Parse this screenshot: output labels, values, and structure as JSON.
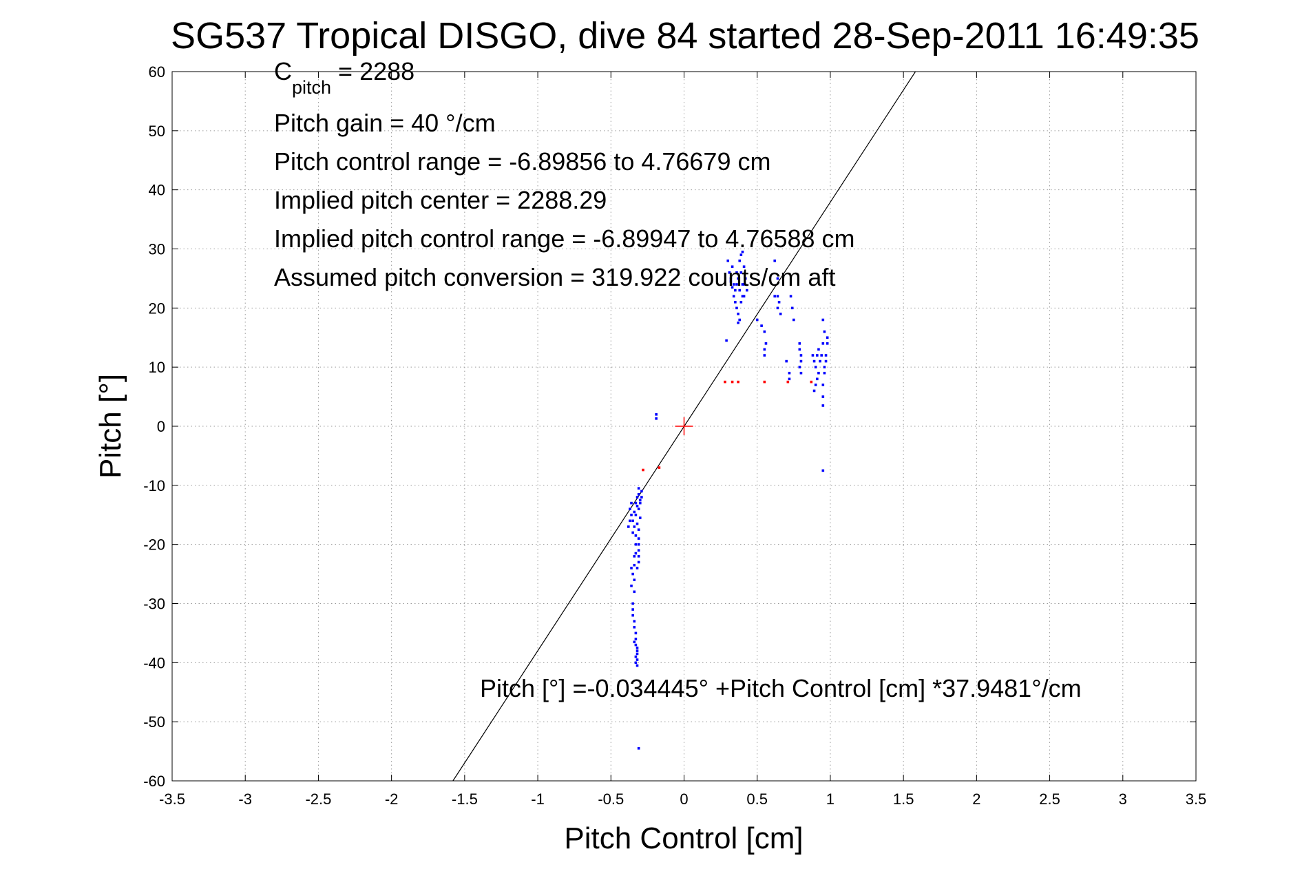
{
  "chart_data": {
    "type": "scatter",
    "title": "SG537 Tropical DISGO, dive 84 started 28-Sep-2011 16:49:35",
    "xlabel": "Pitch Control [cm]",
    "ylabel": "Pitch [°]",
    "xlim": [
      -3.5,
      3.5
    ],
    "ylim": [
      -60,
      60
    ],
    "xticks": [
      -3.5,
      -3,
      -2.5,
      -2,
      -1.5,
      -1,
      -0.5,
      0,
      0.5,
      1,
      1.5,
      2,
      2.5,
      3,
      3.5
    ],
    "xtick_labels": [
      "-3.5",
      "-3",
      "-2.5",
      "-2",
      "-1.5",
      "-1",
      "-0.5",
      "0",
      "0.5",
      "1",
      "1.5",
      "2",
      "2.5",
      "3",
      "3.5"
    ],
    "yticks": [
      -60,
      -50,
      -40,
      -30,
      -20,
      -10,
      0,
      10,
      20,
      30,
      40,
      50,
      60
    ],
    "ytick_labels": [
      "-60",
      "-50",
      "-40",
      "-30",
      "-20",
      "-10",
      "0",
      "10",
      "20",
      "30",
      "40",
      "50",
      "60"
    ],
    "grid": true,
    "annotations": {
      "c_pitch_main": "C",
      "c_pitch_sub": "pitch",
      "c_pitch_value": " = 2288",
      "pitch_gain": "Pitch gain = 40 °/cm",
      "control_range": "Pitch control range = -6.89856 to 4.76679 cm",
      "implied_center": "Implied pitch center = 2288.29",
      "implied_range": "Implied pitch control range = -6.89947 to 4.76588 cm",
      "assumed_conversion": "Assumed pitch conversion = 319.922 counts/cm aft",
      "fit_equation": "Pitch [°] =-0.034445° +Pitch Control [cm] *37.9481°/cm"
    },
    "fit_line": {
      "intercept": -0.034445,
      "slope": 37.9481,
      "color": "#000000"
    },
    "center_marker": {
      "x": 0,
      "y": 0,
      "color": "#ff0000",
      "shape": "plus"
    },
    "series": [
      {
        "color": "#0000ff",
        "points": [
          [
            -0.31,
            -10.5
          ],
          [
            -0.31,
            -11.5
          ],
          [
            -0.32,
            -12
          ],
          [
            -0.3,
            -12.5
          ],
          [
            -0.33,
            -13
          ],
          [
            -0.32,
            -13.5
          ],
          [
            -0.31,
            -14
          ],
          [
            -0.34,
            -14.5
          ],
          [
            -0.33,
            -15
          ],
          [
            -0.3,
            -15.5
          ],
          [
            -0.35,
            -16
          ],
          [
            -0.32,
            -16.5
          ],
          [
            -0.34,
            -17
          ],
          [
            -0.31,
            -17.5
          ],
          [
            -0.35,
            -18
          ],
          [
            -0.33,
            -18.5
          ],
          [
            -0.36,
            -13
          ],
          [
            -0.37,
            -14
          ],
          [
            -0.36,
            -15
          ],
          [
            -0.37,
            -16
          ],
          [
            -0.38,
            -17
          ],
          [
            -0.29,
            -11
          ],
          [
            -0.29,
            -12
          ],
          [
            -0.3,
            -13
          ],
          [
            -0.31,
            -19
          ],
          [
            -0.31,
            -20
          ],
          [
            -0.31,
            -21
          ],
          [
            -0.31,
            -22
          ],
          [
            -0.31,
            -23
          ],
          [
            -0.32,
            -24
          ],
          [
            -0.33,
            -20
          ],
          [
            -0.33,
            -21.5
          ],
          [
            -0.34,
            -22
          ],
          [
            -0.34,
            -23.5
          ],
          [
            -0.35,
            -25
          ],
          [
            -0.34,
            -26
          ],
          [
            -0.34,
            -28
          ],
          [
            -0.35,
            -30
          ],
          [
            -0.35,
            -32
          ],
          [
            -0.34,
            -33
          ],
          [
            -0.34,
            -34
          ],
          [
            -0.33,
            -35
          ],
          [
            -0.33,
            -36
          ],
          [
            -0.33,
            -37
          ],
          [
            -0.32,
            -38
          ],
          [
            -0.32,
            -38.5
          ],
          [
            -0.33,
            -39
          ],
          [
            -0.32,
            -39.5
          ],
          [
            -0.33,
            -40
          ],
          [
            -0.32,
            -40.5
          ],
          [
            -0.34,
            -36.5
          ],
          [
            -0.32,
            -37.5
          ],
          [
            -0.35,
            -31
          ],
          [
            -0.36,
            -27
          ],
          [
            -0.36,
            -24
          ],
          [
            -0.31,
            -54.5
          ],
          [
            -0.19,
            2
          ],
          [
            -0.19,
            1.3
          ],
          [
            0.3,
            28
          ],
          [
            0.31,
            26
          ],
          [
            0.32,
            25
          ],
          [
            0.33,
            27
          ],
          [
            0.34,
            24
          ],
          [
            0.35,
            23
          ],
          [
            0.36,
            26
          ],
          [
            0.37,
            25
          ],
          [
            0.38,
            28
          ],
          [
            0.39,
            29
          ],
          [
            0.4,
            29.5
          ],
          [
            0.41,
            27
          ],
          [
            0.42,
            25
          ],
          [
            0.43,
            23
          ],
          [
            0.35,
            21
          ],
          [
            0.36,
            20
          ],
          [
            0.37,
            19
          ],
          [
            0.38,
            18
          ],
          [
            0.37,
            17.5
          ],
          [
            0.39,
            21
          ],
          [
            0.4,
            22
          ],
          [
            0.41,
            24
          ],
          [
            0.34,
            22
          ],
          [
            0.33,
            23.5
          ],
          [
            0.32,
            24.5
          ],
          [
            0.38,
            23
          ],
          [
            0.36,
            24
          ],
          [
            0.39,
            26
          ],
          [
            0.4,
            24
          ],
          [
            0.41,
            22
          ],
          [
            0.29,
            14.5
          ],
          [
            0.5,
            18
          ],
          [
            0.53,
            17
          ],
          [
            0.55,
            16
          ],
          [
            0.56,
            14
          ],
          [
            0.55,
            12
          ],
          [
            0.55,
            13
          ],
          [
            0.62,
            28
          ],
          [
            0.64,
            25
          ],
          [
            0.64,
            22
          ],
          [
            0.65,
            21
          ],
          [
            0.66,
            19
          ],
          [
            0.64,
            20
          ],
          [
            0.62,
            22
          ],
          [
            0.7,
            11
          ],
          [
            0.72,
            9
          ],
          [
            0.72,
            8
          ],
          [
            0.73,
            22
          ],
          [
            0.74,
            20
          ],
          [
            0.75,
            18
          ],
          [
            0.79,
            14
          ],
          [
            0.79,
            13
          ],
          [
            0.8,
            12
          ],
          [
            0.8,
            11
          ],
          [
            0.79,
            10
          ],
          [
            0.8,
            9
          ],
          [
            0.88,
            12
          ],
          [
            0.89,
            11
          ],
          [
            0.9,
            10
          ],
          [
            0.91,
            12
          ],
          [
            0.92,
            13
          ],
          [
            0.93,
            11
          ],
          [
            0.92,
            9
          ],
          [
            0.91,
            8
          ],
          [
            0.9,
            7
          ],
          [
            0.89,
            6
          ],
          [
            0.95,
            18
          ],
          [
            0.96,
            16
          ],
          [
            0.95,
            14
          ],
          [
            0.94,
            12
          ],
          [
            0.96,
            10
          ],
          [
            0.97,
            12
          ],
          [
            0.98,
            14
          ],
          [
            0.98,
            15
          ],
          [
            0.97,
            11
          ],
          [
            0.96,
            9
          ],
          [
            0.95,
            7
          ],
          [
            0.95,
            5
          ],
          [
            0.95,
            3.5
          ],
          [
            0.95,
            -7.5
          ]
        ]
      },
      {
        "color": "#ff0000",
        "points": [
          [
            -0.28,
            -7.4
          ],
          [
            -0.17,
            -7
          ],
          [
            0.28,
            7.5
          ],
          [
            0.33,
            7.5
          ],
          [
            0.37,
            7.5
          ],
          [
            0.55,
            7.5
          ],
          [
            0.71,
            7.5
          ],
          [
            0.87,
            7.5
          ]
        ]
      }
    ]
  }
}
